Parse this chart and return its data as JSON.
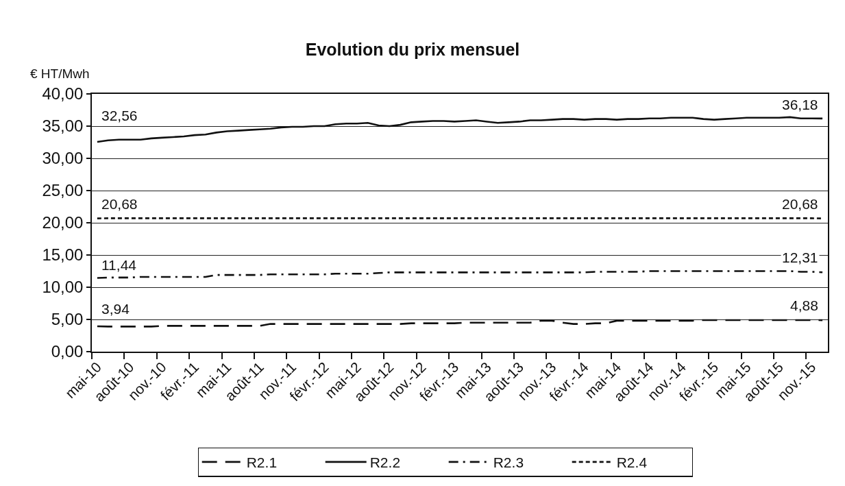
{
  "chart_data": {
    "type": "line",
    "title": "Evolution du prix mensuel",
    "ylabel": "€ HT/Mwh",
    "categories": [
      "mai-10",
      null,
      null,
      "août-10",
      null,
      null,
      "nov.-10",
      null,
      null,
      "févr.-11",
      null,
      null,
      "mai-11",
      null,
      null,
      "août-11",
      null,
      null,
      "nov.-11",
      null,
      null,
      "févr.-12",
      null,
      null,
      "mai-12",
      null,
      null,
      "août-12",
      null,
      null,
      "nov.-12",
      null,
      null,
      "févr.-13",
      null,
      null,
      "mai-13",
      null,
      null,
      "août-13",
      null,
      null,
      "nov.-13",
      null,
      null,
      "févr.-14",
      null,
      null,
      "mai-14",
      null,
      null,
      "août-14",
      null,
      null,
      "nov.-14",
      null,
      null,
      "févr.-15",
      null,
      null,
      "mai-15",
      null,
      null,
      "août-15",
      null,
      null,
      "nov.-15",
      null
    ],
    "ylim": [
      0,
      40
    ],
    "yticks": [
      {
        "value": 0,
        "label": "0,00"
      },
      {
        "value": 5,
        "label": "5,00"
      },
      {
        "value": 10,
        "label": "10,00"
      },
      {
        "value": 15,
        "label": "15,00"
      },
      {
        "value": 20,
        "label": "20,00"
      },
      {
        "value": 25,
        "label": "25,00"
      },
      {
        "value": 30,
        "label": "30,00"
      },
      {
        "value": 35,
        "label": "35,00"
      },
      {
        "value": 40,
        "label": "40,00"
      }
    ],
    "grid": "y",
    "legend": "bottom",
    "series": [
      {
        "name": "R2.1",
        "color": "#111111",
        "line_style": "longdash",
        "values": [
          3.94,
          3.9,
          3.9,
          3.9,
          3.9,
          3.9,
          4.0,
          4.0,
          4.0,
          4.0,
          4.0,
          4.0,
          4.0,
          4.0,
          4.0,
          4.0,
          4.3,
          4.3,
          4.3,
          4.3,
          4.3,
          4.3,
          4.3,
          4.3,
          4.3,
          4.3,
          4.3,
          4.3,
          4.3,
          4.4,
          4.4,
          4.4,
          4.4,
          4.4,
          4.5,
          4.5,
          4.5,
          4.5,
          4.5,
          4.5,
          4.5,
          4.8,
          4.8,
          4.5,
          4.3,
          4.3,
          4.4,
          4.4,
          4.8,
          4.8,
          4.8,
          4.8,
          4.8,
          4.8,
          4.8,
          4.8,
          4.9,
          4.9,
          4.9,
          4.9,
          4.9,
          4.9,
          4.9,
          4.9,
          4.9,
          4.9,
          4.9,
          4.88
        ],
        "value_labels": [
          "3,94",
          null,
          null,
          null,
          null,
          null,
          null,
          null,
          null,
          null,
          null,
          null,
          null,
          null,
          null,
          null,
          null,
          null,
          null,
          null,
          null,
          null,
          null,
          null,
          null,
          null,
          null,
          null,
          null,
          null,
          null,
          null,
          null,
          null,
          null,
          null,
          null,
          null,
          null,
          null,
          null,
          null,
          null,
          null,
          null,
          null,
          null,
          null,
          null,
          null,
          null,
          null,
          null,
          null,
          null,
          null,
          null,
          null,
          null,
          null,
          null,
          null,
          null,
          null,
          null,
          null,
          null,
          "4,88"
        ]
      },
      {
        "name": "R2.2",
        "color": "#111111",
        "line_style": "solid",
        "values": [
          32.56,
          32.8,
          32.9,
          32.9,
          32.9,
          33.1,
          33.2,
          33.3,
          33.4,
          33.6,
          33.7,
          34.0,
          34.2,
          34.3,
          34.4,
          34.5,
          34.6,
          34.8,
          34.9,
          34.9,
          35.0,
          35.0,
          35.3,
          35.4,
          35.4,
          35.5,
          35.1,
          35.0,
          35.2,
          35.6,
          35.7,
          35.8,
          35.8,
          35.7,
          35.8,
          35.9,
          35.7,
          35.5,
          35.6,
          35.7,
          35.9,
          35.9,
          36.0,
          36.1,
          36.1,
          36.0,
          36.1,
          36.1,
          36.0,
          36.1,
          36.1,
          36.2,
          36.2,
          36.3,
          36.3,
          36.3,
          36.1,
          36.0,
          36.1,
          36.2,
          36.3,
          36.3,
          36.3,
          36.3,
          36.4,
          36.2,
          36.2,
          36.18
        ],
        "value_labels": [
          "32,56",
          null,
          null,
          null,
          null,
          null,
          null,
          null,
          null,
          null,
          null,
          null,
          null,
          null,
          null,
          null,
          null,
          null,
          null,
          null,
          null,
          null,
          null,
          null,
          null,
          null,
          null,
          null,
          null,
          null,
          null,
          null,
          null,
          null,
          null,
          null,
          null,
          null,
          null,
          null,
          null,
          null,
          null,
          null,
          null,
          null,
          null,
          null,
          null,
          null,
          null,
          null,
          null,
          null,
          null,
          null,
          null,
          null,
          null,
          null,
          null,
          null,
          null,
          null,
          null,
          null,
          null,
          "36,18"
        ]
      },
      {
        "name": "R2.3",
        "color": "#111111",
        "line_style": "dashdot",
        "values": [
          11.44,
          11.5,
          11.5,
          11.5,
          11.6,
          11.6,
          11.6,
          11.6,
          11.6,
          11.6,
          11.6,
          11.9,
          11.9,
          11.9,
          11.9,
          11.9,
          12.0,
          12.0,
          12.0,
          12.0,
          12.0,
          12.0,
          12.1,
          12.1,
          12.1,
          12.1,
          12.2,
          12.3,
          12.3,
          12.3,
          12.3,
          12.3,
          12.3,
          12.3,
          12.3,
          12.3,
          12.3,
          12.3,
          12.3,
          12.3,
          12.3,
          12.3,
          12.3,
          12.3,
          12.3,
          12.3,
          12.4,
          12.4,
          12.4,
          12.4,
          12.4,
          12.5,
          12.5,
          12.5,
          12.5,
          12.5,
          12.5,
          12.5,
          12.5,
          12.5,
          12.5,
          12.5,
          12.5,
          12.5,
          12.5,
          12.4,
          12.4,
          12.31
        ],
        "value_labels": [
          "11,44",
          null,
          null,
          null,
          null,
          null,
          null,
          null,
          null,
          null,
          null,
          null,
          null,
          null,
          null,
          null,
          null,
          null,
          null,
          null,
          null,
          null,
          null,
          null,
          null,
          null,
          null,
          null,
          null,
          null,
          null,
          null,
          null,
          null,
          null,
          null,
          null,
          null,
          null,
          null,
          null,
          null,
          null,
          null,
          null,
          null,
          null,
          null,
          null,
          null,
          null,
          null,
          null,
          null,
          null,
          null,
          null,
          null,
          null,
          null,
          null,
          null,
          null,
          null,
          null,
          null,
          null,
          "12,31"
        ]
      },
      {
        "name": "R2.4",
        "color": "#111111",
        "line_style": "dashed",
        "values": [
          20.68,
          20.7,
          20.7,
          20.7,
          20.7,
          20.7,
          20.7,
          20.7,
          20.7,
          20.7,
          20.7,
          20.7,
          20.7,
          20.7,
          20.7,
          20.7,
          20.7,
          20.7,
          20.7,
          20.7,
          20.7,
          20.7,
          20.7,
          20.7,
          20.7,
          20.7,
          20.7,
          20.7,
          20.7,
          20.7,
          20.7,
          20.7,
          20.7,
          20.7,
          20.7,
          20.7,
          20.7,
          20.7,
          20.7,
          20.7,
          20.7,
          20.7,
          20.7,
          20.7,
          20.7,
          20.7,
          20.7,
          20.7,
          20.7,
          20.7,
          20.7,
          20.7,
          20.7,
          20.7,
          20.7,
          20.7,
          20.7,
          20.7,
          20.7,
          20.7,
          20.7,
          20.7,
          20.7,
          20.7,
          20.7,
          20.7,
          20.7,
          20.68
        ],
        "value_labels": [
          "20,68",
          null,
          null,
          null,
          null,
          null,
          null,
          null,
          null,
          null,
          null,
          null,
          null,
          null,
          null,
          null,
          null,
          null,
          null,
          null,
          null,
          null,
          null,
          null,
          null,
          null,
          null,
          null,
          null,
          null,
          null,
          null,
          null,
          null,
          null,
          null,
          null,
          null,
          null,
          null,
          null,
          null,
          null,
          null,
          null,
          null,
          null,
          null,
          null,
          null,
          null,
          null,
          null,
          null,
          null,
          null,
          null,
          null,
          null,
          null,
          null,
          null,
          null,
          null,
          null,
          null,
          null,
          "20,68"
        ]
      }
    ]
  }
}
